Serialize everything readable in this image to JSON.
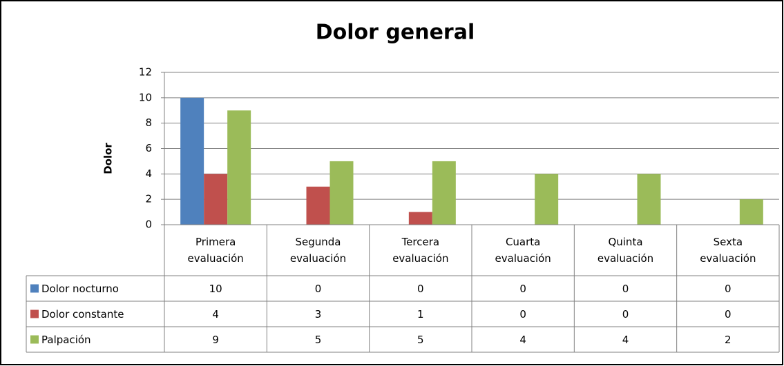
{
  "chart_data": {
    "type": "bar",
    "title": "Dolor general",
    "y_label": "Dolor",
    "categories": [
      "Primera evaluación",
      "Segunda evaluación",
      "Tercera evaluación",
      "Cuarta evaluación",
      "Quinta evaluación",
      "Sexta evaluación"
    ],
    "series": [
      {
        "name": "Dolor nocturno",
        "color": "#4f81bd",
        "values": [
          10,
          0,
          0,
          0,
          0,
          0
        ]
      },
      {
        "name": "Dolor constante",
        "color": "#c0504d",
        "values": [
          4,
          3,
          1,
          0,
          0,
          0
        ]
      },
      {
        "name": "Palpación",
        "color": "#9bbb59",
        "values": [
          9,
          5,
          5,
          4,
          4,
          2
        ]
      }
    ],
    "ylim": [
      0,
      12
    ],
    "yticks": [
      0,
      2,
      4,
      6,
      8,
      10,
      12
    ],
    "grid": true,
    "data_table": true
  }
}
